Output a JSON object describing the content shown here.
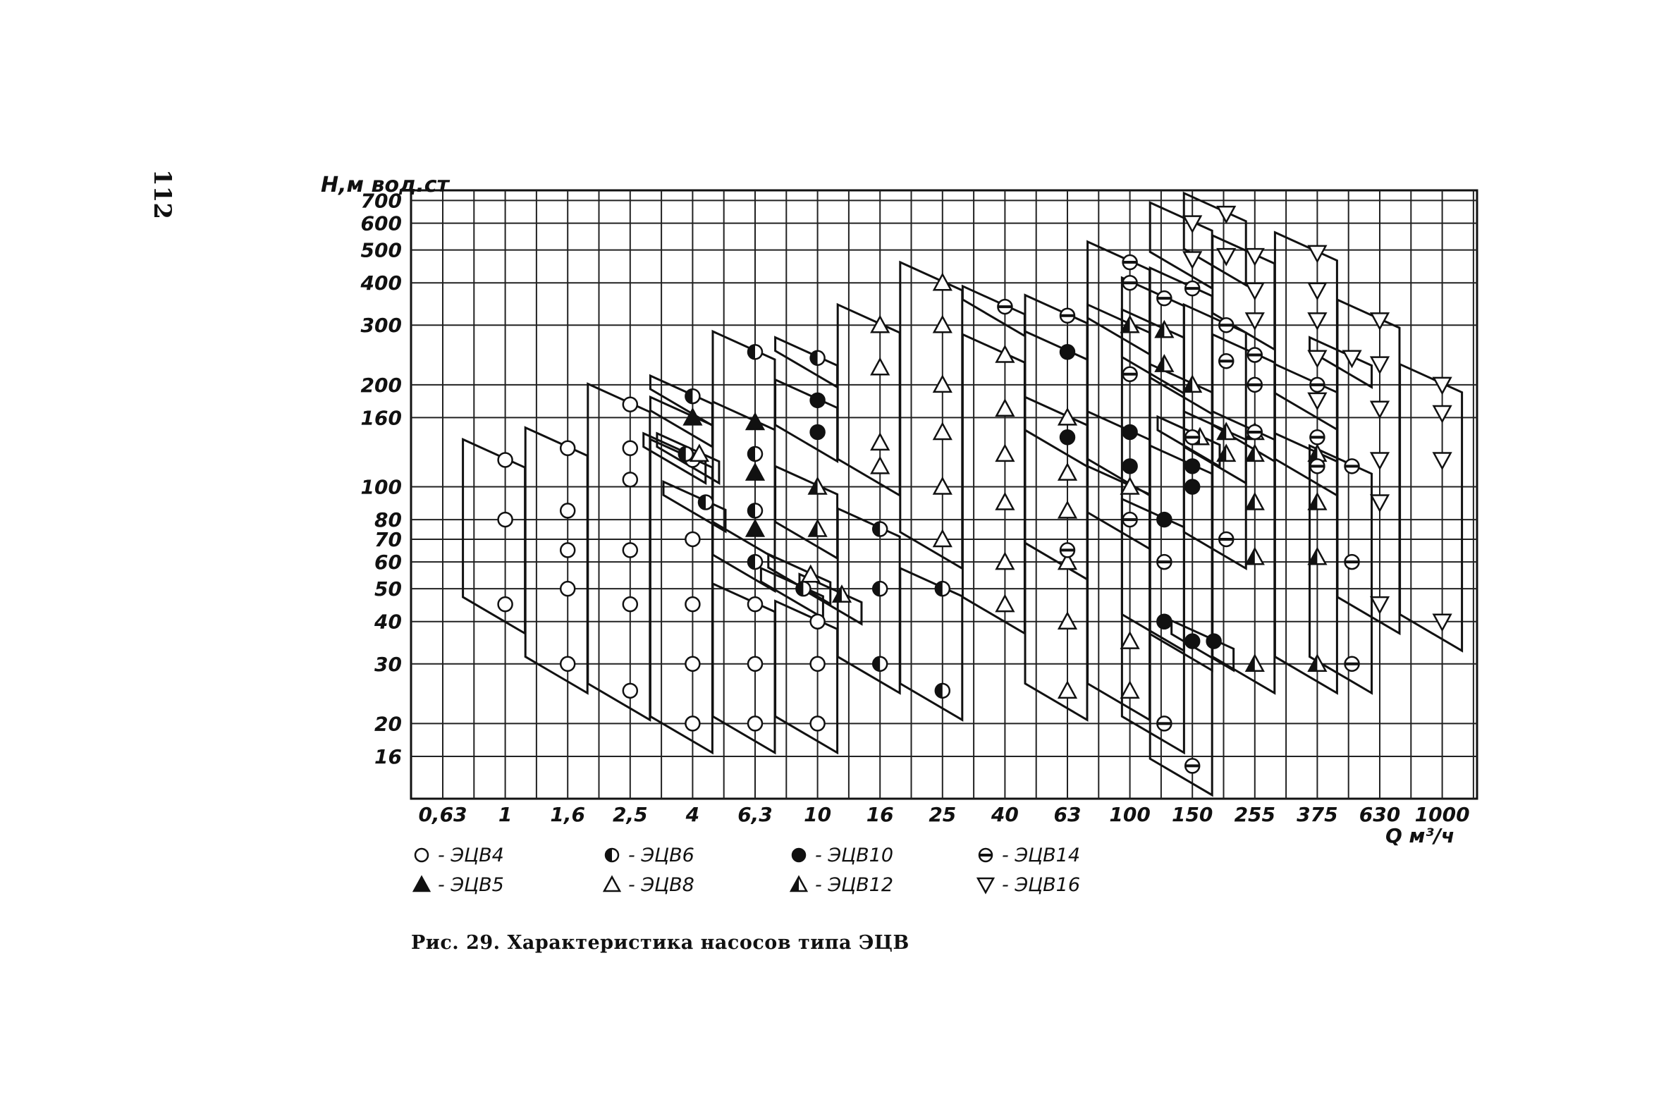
{
  "page": {
    "number": "112",
    "caption": "Рис. 29. Характеристика насосов типа ЭЦВ"
  },
  "chart_data": {
    "type": "scatter",
    "title": "",
    "ylabel": "H,м вод.ст",
    "xlabel": "Q м³/ч",
    "x_scale": "log",
    "y_scale": "log",
    "grid": true,
    "x_ticks": [
      "0,63",
      "1",
      "1,6",
      "2,5",
      "4",
      "6,3",
      "10",
      "16",
      "25",
      "40",
      "63",
      "100",
      "150",
      "255",
      "375",
      "630",
      "1000"
    ],
    "y_ticks": [
      "700",
      "600",
      "500",
      "400",
      "300",
      "200",
      "160",
      "100",
      "80",
      "70",
      "60",
      "50",
      "40",
      "30",
      "20",
      "16"
    ],
    "y_tick_values": [
      700,
      600,
      500,
      400,
      300,
      200,
      160,
      100,
      80,
      70,
      60,
      50,
      40,
      30,
      20,
      16
    ],
    "ylim": [
      12,
      750
    ],
    "legend_position": "bottom",
    "series": [
      {
        "name": "ЭЦВ4",
        "marker": "circle-open",
        "points": [
          [
            1,
            120
          ],
          [
            1,
            80
          ],
          [
            1,
            45
          ],
          [
            1.6,
            130
          ],
          [
            1.6,
            85
          ],
          [
            1.6,
            65
          ],
          [
            1.6,
            50
          ],
          [
            1.6,
            30
          ],
          [
            2.5,
            175
          ],
          [
            2.5,
            130
          ],
          [
            2.5,
            105
          ],
          [
            2.5,
            65
          ],
          [
            2.5,
            45
          ],
          [
            2.5,
            25
          ],
          [
            4,
            120
          ],
          [
            4,
            70
          ],
          [
            4,
            45
          ],
          [
            4,
            30
          ],
          [
            4,
            20
          ],
          [
            6.3,
            45
          ],
          [
            6.3,
            30
          ],
          [
            6.3,
            20
          ],
          [
            10,
            40
          ],
          [
            10,
            30
          ],
          [
            10,
            20
          ]
        ]
      },
      {
        "name": "ЭЦВ5",
        "marker": "triangle-filled",
        "points": [
          [
            4,
            160
          ],
          [
            6.3,
            155
          ],
          [
            6.3,
            110
          ],
          [
            6.3,
            75
          ]
        ]
      },
      {
        "name": "ЭЦВ6",
        "marker": "circle-half",
        "points": [
          [
            3.8,
            125
          ],
          [
            4,
            185
          ],
          [
            4.4,
            90
          ],
          [
            6.3,
            250
          ],
          [
            6.3,
            125
          ],
          [
            6.3,
            85
          ],
          [
            6.3,
            60
          ],
          [
            9,
            50
          ],
          [
            10,
            240
          ],
          [
            16,
            75
          ],
          [
            16,
            50
          ],
          [
            16,
            30
          ],
          [
            25,
            50
          ],
          [
            25,
            25
          ]
        ]
      },
      {
        "name": "ЭЦВ8",
        "marker": "triangle-open",
        "points": [
          [
            4.2,
            125
          ],
          [
            9.5,
            55
          ],
          [
            16,
            300
          ],
          [
            16,
            225
          ],
          [
            16,
            135
          ],
          [
            16,
            115
          ],
          [
            25,
            400
          ],
          [
            25,
            300
          ],
          [
            25,
            200
          ],
          [
            25,
            145
          ],
          [
            25,
            100
          ],
          [
            25,
            70
          ],
          [
            40,
            245
          ],
          [
            40,
            170
          ],
          [
            40,
            125
          ],
          [
            40,
            90
          ],
          [
            40,
            60
          ],
          [
            40,
            45
          ],
          [
            63,
            160
          ],
          [
            63,
            110
          ],
          [
            63,
            85
          ],
          [
            63,
            60
          ],
          [
            63,
            40
          ],
          [
            63,
            25
          ],
          [
            100,
            100
          ],
          [
            100,
            35
          ],
          [
            100,
            25
          ]
        ]
      },
      {
        "name": "ЭЦВ10",
        "marker": "circle-filled",
        "points": [
          [
            10,
            180
          ],
          [
            10,
            145
          ],
          [
            63,
            250
          ],
          [
            63,
            140
          ],
          [
            100,
            145
          ],
          [
            100,
            115
          ],
          [
            125,
            80
          ],
          [
            125,
            40
          ],
          [
            150,
            115
          ],
          [
            150,
            100
          ],
          [
            150,
            35
          ],
          [
            180,
            35
          ]
        ]
      },
      {
        "name": "ЭЦВ12",
        "marker": "triangle-half",
        "points": [
          [
            10,
            100
          ],
          [
            10,
            75
          ],
          [
            12,
            48
          ],
          [
            100,
            300
          ],
          [
            125,
            290
          ],
          [
            125,
            230
          ],
          [
            150,
            200
          ],
          [
            160,
            140
          ],
          [
            200,
            145
          ],
          [
            200,
            125
          ],
          [
            255,
            145
          ],
          [
            255,
            125
          ],
          [
            255,
            90
          ],
          [
            255,
            62
          ],
          [
            255,
            30
          ],
          [
            375,
            125
          ],
          [
            375,
            90
          ],
          [
            375,
            62
          ],
          [
            375,
            30
          ]
        ]
      },
      {
        "name": "ЭЦВ14",
        "marker": "circle-hatched",
        "points": [
          [
            40,
            340
          ],
          [
            63,
            320
          ],
          [
            63,
            65
          ],
          [
            100,
            460
          ],
          [
            100,
            400
          ],
          [
            100,
            215
          ],
          [
            100,
            80
          ],
          [
            125,
            360
          ],
          [
            125,
            60
          ],
          [
            125,
            20
          ],
          [
            150,
            385
          ],
          [
            150,
            140
          ],
          [
            150,
            15
          ],
          [
            200,
            300
          ],
          [
            200,
            235
          ],
          [
            200,
            70
          ],
          [
            255,
            245
          ],
          [
            255,
            200
          ],
          [
            255,
            145
          ],
          [
            375,
            200
          ],
          [
            375,
            140
          ],
          [
            375,
            115
          ],
          [
            500,
            115
          ],
          [
            500,
            60
          ],
          [
            500,
            30
          ]
        ]
      },
      {
        "name": "ЭЦВ16",
        "marker": "triangle-down-open",
        "points": [
          [
            150,
            600
          ],
          [
            150,
            470
          ],
          [
            200,
            640
          ],
          [
            200,
            480
          ],
          [
            255,
            480
          ],
          [
            255,
            380
          ],
          [
            255,
            310
          ],
          [
            375,
            490
          ],
          [
            375,
            380
          ],
          [
            375,
            310
          ],
          [
            375,
            240
          ],
          [
            375,
            180
          ],
          [
            500,
            240
          ],
          [
            630,
            310
          ],
          [
            630,
            230
          ],
          [
            630,
            170
          ],
          [
            630,
            120
          ],
          [
            630,
            90
          ],
          [
            630,
            45
          ],
          [
            1000,
            200
          ],
          [
            1000,
            165
          ],
          [
            1000,
            120
          ],
          [
            1000,
            40
          ]
        ]
      }
    ]
  }
}
